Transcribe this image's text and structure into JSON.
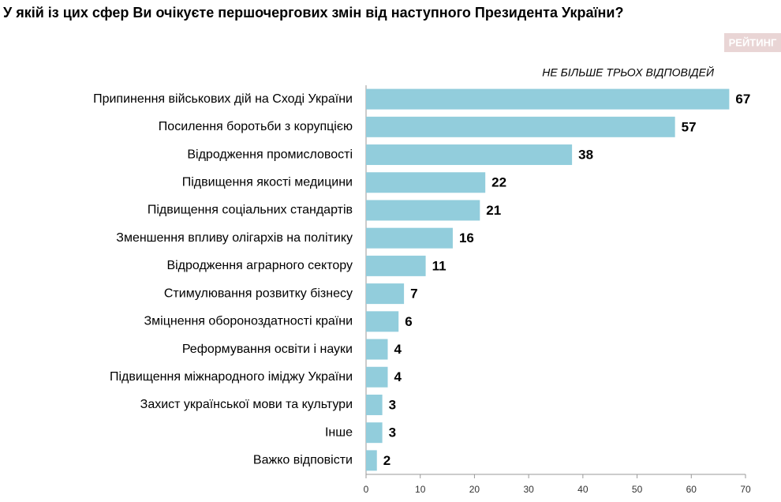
{
  "chart_data": {
    "type": "bar",
    "orientation": "horizontal",
    "title": "У якій із цих сфер Ви очікуєте першочергових змін від наступного Президента України?",
    "subtitle": "НЕ БІЛЬШЕ ТРЬОХ ВІДПОВІДЕЙ",
    "logo": "РЕЙТИНГ",
    "categories": [
      "Припинення військових дій на Сході України",
      "Посилення боротьби з корупцією",
      "Відродження промисловості",
      "Підвищення якості медицини",
      "Підвищення соціальних стандартів",
      "Зменшення впливу олігархів на політику",
      "Відродження аграрного сектору",
      "Стимулювання розвитку бізнесу",
      "Зміцнення обороноздатності країни",
      "Реформування освіти і науки",
      "Підвищення міжнародного іміджу України",
      "Захист української мови та культури",
      "Інше",
      "Важко відповісти"
    ],
    "values": [
      67,
      57,
      38,
      22,
      21,
      16,
      11,
      7,
      6,
      4,
      4,
      3,
      3,
      2
    ],
    "color": "#92cddc",
    "xlim": [
      0,
      70
    ],
    "xticks": [
      0,
      10,
      20,
      30,
      40,
      50,
      60,
      70
    ]
  }
}
